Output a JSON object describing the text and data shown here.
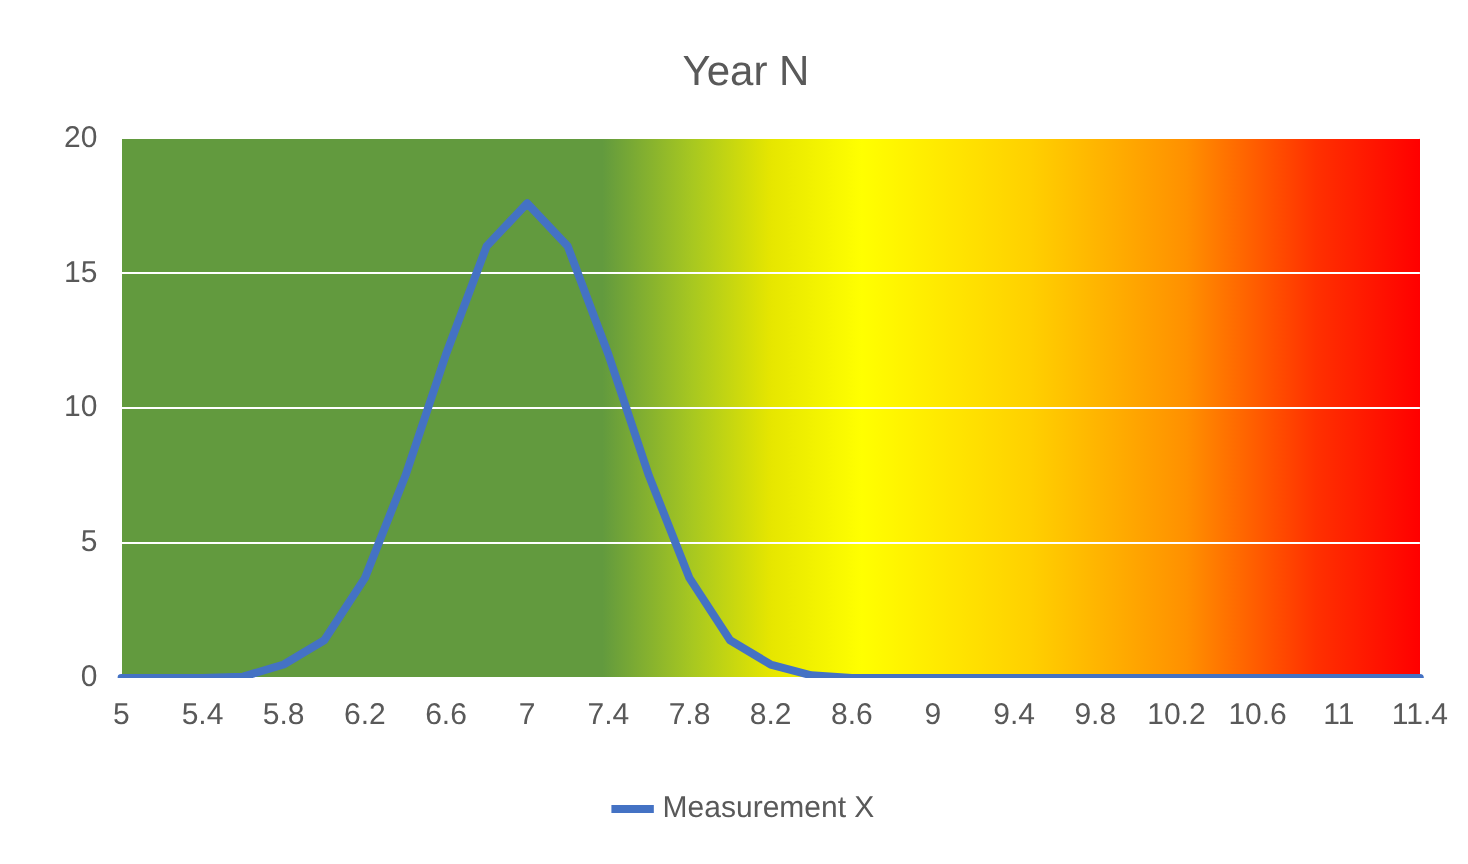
{
  "chart_data": {
    "type": "line",
    "title": "Year N",
    "categories": [
      "5",
      null,
      "5.4",
      null,
      "5.8",
      null,
      "6.2",
      null,
      "6.6",
      null,
      "7",
      null,
      "7.4",
      null,
      "7.8",
      null,
      "8.2",
      null,
      "8.6",
      null,
      "9",
      null,
      "9.4",
      null,
      "9.8",
      null,
      "10.2",
      null,
      "10.6",
      null,
      "11",
      null,
      "11.4"
    ],
    "series": [
      {
        "name": "Measurement X",
        "color": "#4472c4",
        "values": [
          0,
          0,
          0,
          0.05,
          0.5,
          1.4,
          3.7,
          7.5,
          12,
          16,
          17.6,
          16,
          12,
          7.5,
          3.7,
          1.4,
          0.5,
          0.1,
          0,
          0,
          0,
          0,
          0,
          0,
          0,
          0,
          0,
          0,
          0,
          0,
          0,
          0,
          0
        ]
      }
    ],
    "ylim": [
      0,
      20
    ],
    "yticks": [
      0,
      5,
      10,
      15,
      20
    ],
    "grid": "y",
    "legend": "bottom",
    "marker": "none",
    "line_style": "solid"
  }
}
